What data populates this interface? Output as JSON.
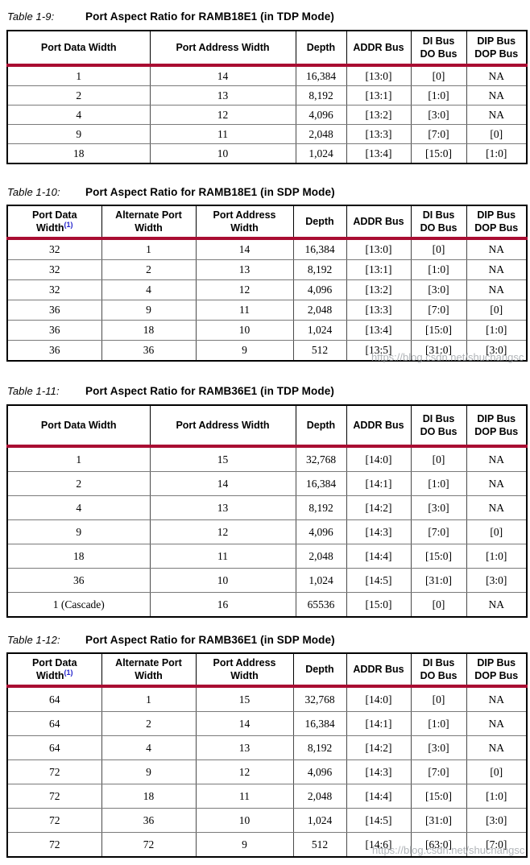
{
  "colors": {
    "header_rule_red": "#A90D32",
    "footnote_link_blue": "#2323CC",
    "watermark_gray": "#9EA2A8",
    "table_border": "#000000"
  },
  "watermark": {
    "text": "https://blog.csdn.net/shuchangsc"
  },
  "tables": [
    {
      "label": "Table 1-9:",
      "title": "Port Aspect Ratio for RAMB18E1 (in TDP Mode)",
      "columns": [
        "Port Data Width",
        "Port Address Width",
        "Depth",
        "ADDR Bus",
        "DI Bus\nDO Bus",
        "DIP Bus\nDOP Bus"
      ],
      "rows": [
        [
          "1",
          "14",
          "16,384",
          "[13:0]",
          "[0]",
          "NA"
        ],
        [
          "2",
          "13",
          "8,192",
          "[13:1]",
          "[1:0]",
          "NA"
        ],
        [
          "4",
          "12",
          "4,096",
          "[13:2]",
          "[3:0]",
          "NA"
        ],
        [
          "9",
          "11",
          "2,048",
          "[13:3]",
          "[7:0]",
          "[0]"
        ],
        [
          "18",
          "10",
          "1,024",
          "[13:4]",
          "[15:0]",
          "[1:0]"
        ]
      ]
    },
    {
      "label": "Table 1-10:",
      "title": "Port Aspect Ratio for RAMB18E1 (in SDP Mode)",
      "footnote_ref": "(1)",
      "columns": [
        "Port Data\nWidth",
        "Alternate Port\nWidth",
        "Port Address\nWidth",
        "Depth",
        "ADDR Bus",
        "DI Bus\nDO Bus",
        "DIP Bus\nDOP Bus"
      ],
      "rows": [
        [
          "32",
          "1",
          "14",
          "16,384",
          "[13:0]",
          "[0]",
          "NA"
        ],
        [
          "32",
          "2",
          "13",
          "8,192",
          "[13:1]",
          "[1:0]",
          "NA"
        ],
        [
          "32",
          "4",
          "12",
          "4,096",
          "[13:2]",
          "[3:0]",
          "NA"
        ],
        [
          "36",
          "9",
          "11",
          "2,048",
          "[13:3]",
          "[7:0]",
          "[0]"
        ],
        [
          "36",
          "18",
          "10",
          "1,024",
          "[13:4]",
          "[15:0]",
          "[1:0]"
        ],
        [
          "36",
          "36",
          "9",
          "512",
          "[13:5]",
          "[31:0]",
          "[3:0]"
        ]
      ]
    },
    {
      "label": "Table 1-11:",
      "title": "Port Aspect Ratio for RAMB36E1 (in TDP Mode)",
      "columns": [
        "Port Data Width",
        "Port Address Width",
        "Depth",
        "ADDR Bus",
        "DI Bus\nDO Bus",
        "DIP Bus\nDOP Bus"
      ],
      "rows": [
        [
          "1",
          "15",
          "32,768",
          "[14:0]",
          "[0]",
          "NA"
        ],
        [
          "2",
          "14",
          "16,384",
          "[14:1]",
          "[1:0]",
          "NA"
        ],
        [
          "4",
          "13",
          "8,192",
          "[14:2]",
          "[3:0]",
          "NA"
        ],
        [
          "9",
          "12",
          "4,096",
          "[14:3]",
          "[7:0]",
          "[0]"
        ],
        [
          "18",
          "11",
          "2,048",
          "[14:4]",
          "[15:0]",
          "[1:0]"
        ],
        [
          "36",
          "10",
          "1,024",
          "[14:5]",
          "[31:0]",
          "[3:0]"
        ],
        [
          "1 (Cascade)",
          "16",
          "65536",
          "[15:0]",
          "[0]",
          "NA"
        ]
      ]
    },
    {
      "label": "Table 1-12:",
      "title": "Port Aspect Ratio for RAMB36E1 (in SDP Mode)",
      "footnote_ref": "(1)",
      "columns": [
        "Port Data\nWidth",
        "Alternate Port\nWidth",
        "Port Address\nWidth",
        "Depth",
        "ADDR Bus",
        "DI Bus\nDO Bus",
        "DIP Bus\nDOP Bus"
      ],
      "rows": [
        [
          "64",
          "1",
          "15",
          "32,768",
          "[14:0]",
          "[0]",
          "NA"
        ],
        [
          "64",
          "2",
          "14",
          "16,384",
          "[14:1]",
          "[1:0]",
          "NA"
        ],
        [
          "64",
          "4",
          "13",
          "8,192",
          "[14:2]",
          "[3:0]",
          "NA"
        ],
        [
          "72",
          "9",
          "12",
          "4,096",
          "[14:3]",
          "[7:0]",
          "[0]"
        ],
        [
          "72",
          "18",
          "11",
          "2,048",
          "[14:4]",
          "[15:0]",
          "[1:0]"
        ],
        [
          "72",
          "36",
          "10",
          "1,024",
          "[14:5]",
          "[31:0]",
          "[3:0]"
        ],
        [
          "72",
          "72",
          "9",
          "512",
          "[14:6]",
          "[63:0]",
          "[7:0]"
        ]
      ]
    }
  ]
}
